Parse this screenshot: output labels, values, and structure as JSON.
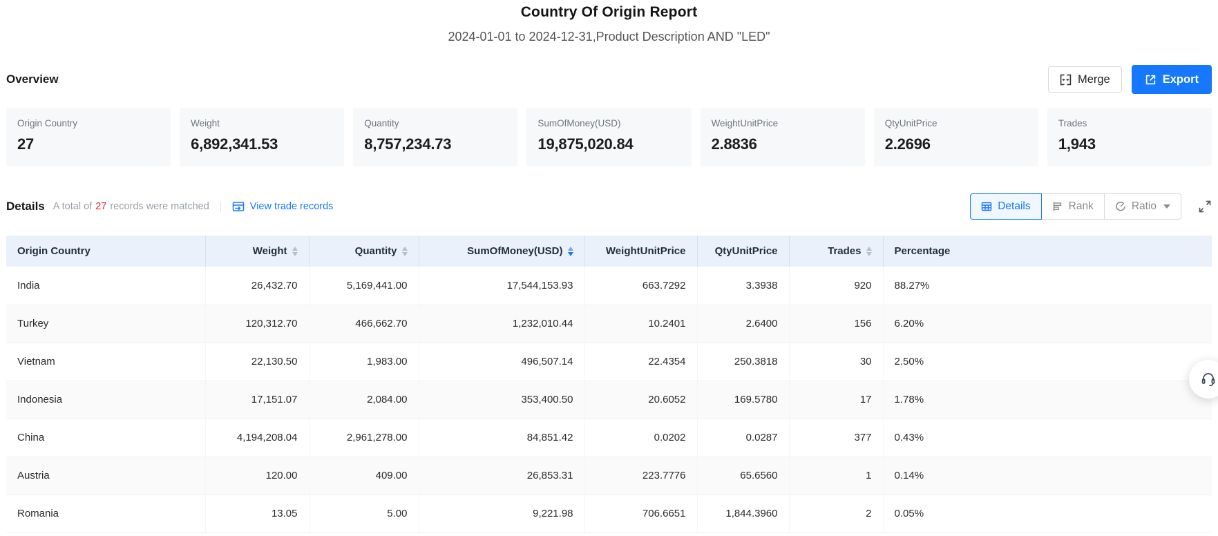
{
  "page": {
    "title": "Country Of Origin Report",
    "subtitle": "2024-01-01 to 2024-12-31,Product Description AND \"LED\""
  },
  "overview": {
    "label": "Overview",
    "merge_label": "Merge",
    "export_label": "Export",
    "cards": [
      {
        "label": "Origin Country",
        "value": "27"
      },
      {
        "label": "Weight",
        "value": "6,892,341.53"
      },
      {
        "label": "Quantity",
        "value": "8,757,234.73"
      },
      {
        "label": "SumOfMoney(USD)",
        "value": "19,875,020.84"
      },
      {
        "label": "WeightUnitPrice",
        "value": "2.8836"
      },
      {
        "label": "QtyUnitPrice",
        "value": "2.2696"
      },
      {
        "label": "Trades",
        "value": "1,943"
      }
    ]
  },
  "details": {
    "label": "Details",
    "total_prefix": "A total of",
    "total_count": "27",
    "total_suffix": "records were matched",
    "view_link_label": "View trade records",
    "tabs": {
      "details": "Details",
      "rank": "Rank",
      "ratio": "Ratio"
    }
  },
  "table": {
    "columns": [
      {
        "label": "Origin Country",
        "sortable": false,
        "sort": null,
        "align": "left"
      },
      {
        "label": "Weight",
        "sortable": true,
        "sort": null,
        "align": "right"
      },
      {
        "label": "Quantity",
        "sortable": true,
        "sort": null,
        "align": "right"
      },
      {
        "label": "SumOfMoney(USD)",
        "sortable": true,
        "sort": "desc",
        "align": "right"
      },
      {
        "label": "WeightUnitPrice",
        "sortable": false,
        "sort": null,
        "align": "right"
      },
      {
        "label": "QtyUnitPrice",
        "sortable": false,
        "sort": null,
        "align": "right"
      },
      {
        "label": "Trades",
        "sortable": true,
        "sort": null,
        "align": "right"
      },
      {
        "label": "Percentage",
        "sortable": false,
        "sort": null,
        "align": "left"
      }
    ],
    "rows": [
      [
        "India",
        "26,432.70",
        "5,169,441.00",
        "17,544,153.93",
        "663.7292",
        "3.3938",
        "920",
        "88.27%"
      ],
      [
        "Turkey",
        "120,312.70",
        "466,662.70",
        "1,232,010.44",
        "10.2401",
        "2.6400",
        "156",
        "6.20%"
      ],
      [
        "Vietnam",
        "22,130.50",
        "1,983.00",
        "496,507.14",
        "22.4354",
        "250.3818",
        "30",
        "2.50%"
      ],
      [
        "Indonesia",
        "17,151.07",
        "2,084.00",
        "353,400.50",
        "20.6052",
        "169.5780",
        "17",
        "1.78%"
      ],
      [
        "China",
        "4,194,208.04",
        "2,961,278.00",
        "84,851.42",
        "0.0202",
        "0.0287",
        "377",
        "0.43%"
      ],
      [
        "Austria",
        "120.00",
        "409.00",
        "26,853.31",
        "223.7776",
        "65.6560",
        "1",
        "0.14%"
      ],
      [
        "Romania",
        "13.05",
        "5.00",
        "9,221.98",
        "706.6651",
        "1,844.3960",
        "2",
        "0.05%"
      ]
    ]
  },
  "colors": {
    "primary": "#1677ff",
    "accent_red": "#f5222d",
    "table_header_bg": "#eaf1fb"
  }
}
